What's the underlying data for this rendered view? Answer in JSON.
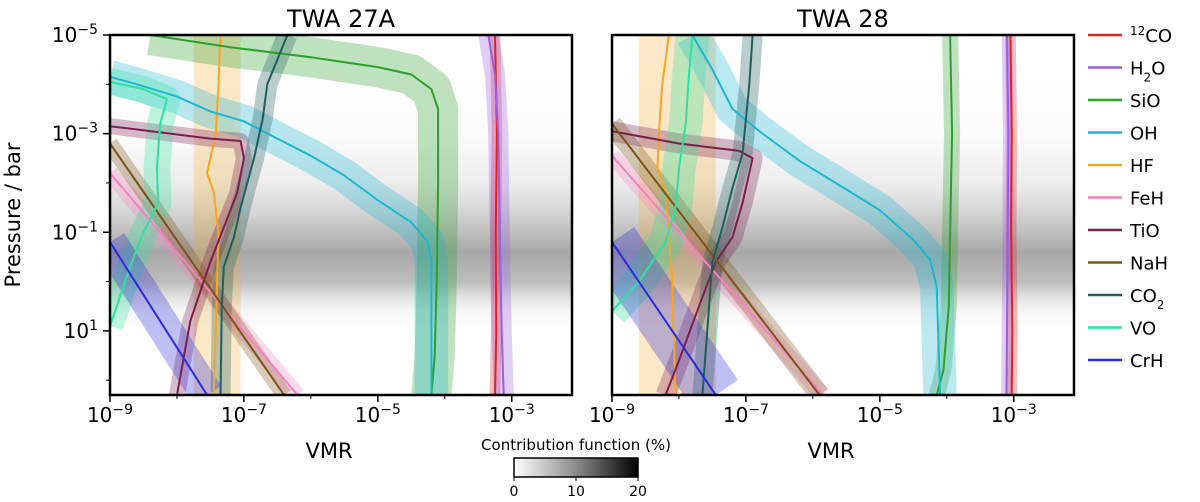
{
  "chart_data": {
    "type": "line",
    "figure_ylabel": "Pressure / bar",
    "xlabel": "VMR",
    "x_scale": "log",
    "y_scale": "log",
    "xlim": [
      -9,
      -2.1
    ],
    "ylim": [
      -5,
      2.3
    ],
    "x_ticks": [
      {
        "value": -9,
        "base": "10",
        "exp": "−9"
      },
      {
        "value": -7,
        "base": "10",
        "exp": "−7"
      },
      {
        "value": -5,
        "base": "10",
        "exp": "−5"
      },
      {
        "value": -3,
        "base": "10",
        "exp": "−3"
      }
    ],
    "y_ticks": [
      {
        "value": -5,
        "base": "10",
        "exp": "−5"
      },
      {
        "value": -3,
        "base": "10",
        "exp": "−3"
      },
      {
        "value": -1,
        "base": "10",
        "exp": "−1"
      },
      {
        "value": 1,
        "base": "10",
        "exp": "1"
      }
    ],
    "colorbar": {
      "label": "Contribution function (%)",
      "ticks": [
        "0",
        "10",
        "20"
      ],
      "range": [
        0,
        20
      ],
      "colormap": "Greys"
    },
    "legend": {
      "placement": "outside-right",
      "entries": [
        {
          "key": "12CO",
          "pre": "",
          "sup": "12",
          "main": "CO",
          "sub": "",
          "post": "",
          "color": "#d62728"
        },
        {
          "key": "H2O",
          "pre": "H",
          "sup": "",
          "main": "",
          "sub": "2",
          "post": "O",
          "color": "#9c5ce6"
        },
        {
          "key": "SiO",
          "pre": "SiO",
          "sup": "",
          "main": "",
          "sub": "",
          "post": "",
          "color": "#2ca02c"
        },
        {
          "key": "OH",
          "pre": "OH",
          "sup": "",
          "main": "",
          "sub": "",
          "post": "",
          "color": "#1fb6cf"
        },
        {
          "key": "HF",
          "pre": "HF",
          "sup": "",
          "main": "",
          "sub": "",
          "post": "",
          "color": "#f5a623"
        },
        {
          "key": "FeH",
          "pre": "FeH",
          "sup": "",
          "main": "",
          "sub": "",
          "post": "",
          "color": "#f781bf"
        },
        {
          "key": "TiO",
          "pre": "TiO",
          "sup": "",
          "main": "",
          "sub": "",
          "post": "",
          "color": "#7b1f4f"
        },
        {
          "key": "NaH",
          "pre": "NaH",
          "sup": "",
          "main": "",
          "sub": "",
          "post": "",
          "color": "#7a5418"
        },
        {
          "key": "CO2",
          "pre": "CO",
          "sup": "",
          "main": "",
          "sub": "2",
          "post": "",
          "color": "#1f5e5e"
        },
        {
          "key": "VO",
          "pre": "VO",
          "sup": "",
          "main": "",
          "sub": "",
          "post": "",
          "color": "#30e0a0"
        },
        {
          "key": "CrH",
          "pre": "CrH",
          "sup": "",
          "main": "",
          "sub": "",
          "post": "",
          "color": "#2b2bd8"
        }
      ]
    },
    "panels": [
      {
        "title": "TWA 27A",
        "contribution_peak_logP": -0.6,
        "contribution_peak_percent": 20,
        "series": [
          {
            "name": "HF",
            "band": [
              [
                -7.75,
                -7.05
              ],
              [
                -7.75,
                -7.05
              ]
            ],
            "band_y": [
              -5,
              2.3
            ],
            "line": [
              [
                -7.35,
                -5
              ],
              [
                -7.38,
                -4
              ],
              [
                -7.42,
                -3
              ],
              [
                -7.55,
                -2.2
              ],
              [
                -7.45,
                -1.8
              ],
              [
                -7.38,
                -1
              ],
              [
                -7.4,
                0
              ],
              [
                -7.42,
                1
              ],
              [
                -7.45,
                2.3
              ]
            ]
          },
          {
            "name": "12CO",
            "width": 0.08,
            "line": [
              [
                -3.25,
                -5
              ],
              [
                -3.22,
                -3
              ],
              [
                -3.24,
                -1
              ],
              [
                -3.23,
                1
              ],
              [
                -3.25,
                2.3
              ]
            ]
          },
          {
            "name": "H2O",
            "width": 0.15,
            "line": [
              [
                -3.35,
                -5
              ],
              [
                -3.25,
                -4.2
              ],
              [
                -3.2,
                -3
              ],
              [
                -3.18,
                -1
              ],
              [
                -3.15,
                1
              ],
              [
                -3.12,
                2.3
              ]
            ]
          },
          {
            "name": "SiO",
            "width": 0.3,
            "line": [
              [
                -8.4,
                -5
              ],
              [
                -7.2,
                -4.75
              ],
              [
                -6,
                -4.55
              ],
              [
                -5,
                -4.35
              ],
              [
                -4.5,
                -4.2
              ],
              [
                -4.2,
                -3.9
              ],
              [
                -4.1,
                -3.5
              ],
              [
                -4.1,
                -2
              ],
              [
                -4.12,
                0
              ],
              [
                -4.15,
                1.5
              ],
              [
                -4.2,
                2.3
              ]
            ]
          },
          {
            "name": "OH",
            "width": 0.25,
            "line": [
              [
                -9,
                -4.15
              ],
              [
                -8.6,
                -4
              ],
              [
                -8,
                -3.75
              ],
              [
                -7.5,
                -3.45
              ],
              [
                -7,
                -3.25
              ],
              [
                -6.5,
                -2.9
              ],
              [
                -6,
                -2.55
              ],
              [
                -5.5,
                -2.15
              ],
              [
                -5,
                -1.65
              ],
              [
                -4.5,
                -1.2
              ],
              [
                -4.25,
                -0.8
              ],
              [
                -4.2,
                -0.4
              ],
              [
                -4.2,
                2.3
              ]
            ]
          },
          {
            "name": "FeH",
            "width": 0.12,
            "line": [
              [
                -9,
                -2.2
              ],
              [
                -6.2,
                2.3
              ]
            ]
          },
          {
            "name": "TiO",
            "width": 0.12,
            "line": [
              [
                -9,
                -3.15
              ],
              [
                -8.1,
                -3
              ],
              [
                -7.5,
                -2.9
              ],
              [
                -7.05,
                -2.85
              ],
              [
                -7.0,
                -2.5
              ],
              [
                -7.1,
                -1.8
              ],
              [
                -7.3,
                -1.1
              ],
              [
                -7.5,
                -0.4
              ],
              [
                -7.8,
                0.8
              ],
              [
                -8.0,
                2.3
              ]
            ]
          },
          {
            "name": "NaH",
            "width": 0.12,
            "line": [
              [
                -9,
                -2.8
              ],
              [
                -6.4,
                2.3
              ]
            ]
          },
          {
            "name": "CO2",
            "width": 0.15,
            "line": [
              [
                -6.35,
                -5
              ],
              [
                -6.65,
                -4
              ],
              [
                -6.72,
                -3.3
              ],
              [
                -6.85,
                -2.5
              ],
              [
                -7.05,
                -1.5
              ],
              [
                -7.15,
                -0.9
              ],
              [
                -7.3,
                -0.3
              ],
              [
                -7.33,
                0.5
              ],
              [
                -7.35,
                2.3
              ]
            ]
          },
          {
            "name": "VO",
            "width": 0.2,
            "line": [
              [
                -9,
                -4.05
              ],
              [
                -8.5,
                -3.9
              ],
              [
                -8.15,
                -3.7
              ],
              [
                -8.25,
                -3.2
              ],
              [
                -8.3,
                -2.3
              ],
              [
                -8.28,
                -1.6
              ],
              [
                -8.5,
                -1
              ],
              [
                -8.7,
                -0.3
              ],
              [
                -9,
                0.9
              ]
            ]
          },
          {
            "name": "CrH",
            "width": 0.25,
            "line": [
              [
                -9,
                -0.8
              ],
              [
                -7.55,
                2.3
              ]
            ]
          }
        ]
      },
      {
        "title": "TWA 28",
        "contribution_peak_logP": -0.6,
        "contribution_peak_percent": 20,
        "series": [
          {
            "name": "HF",
            "band": [
              [
                -8.6,
                -7.45
              ],
              [
                -8.6,
                -7.45
              ]
            ],
            "band_y": [
              -5,
              2.3
            ],
            "line": [
              [
                -8.15,
                -5
              ],
              [
                -8.25,
                -4
              ],
              [
                -8.3,
                -3
              ],
              [
                -8.32,
                -2.3
              ],
              [
                -8.2,
                -1.8
              ],
              [
                -8.15,
                -1
              ],
              [
                -8.1,
                0
              ],
              [
                -8.08,
                1
              ],
              [
                -8.05,
                2.3
              ]
            ]
          },
          {
            "name": "12CO",
            "width": 0.08,
            "line": [
              [
                -3.05,
                -5
              ],
              [
                -3.03,
                -3
              ],
              [
                -3.04,
                -1
              ],
              [
                -3.02,
                1
              ],
              [
                -3.03,
                2.3
              ]
            ]
          },
          {
            "name": "H2O",
            "width": 0.08,
            "line": [
              [
                -3.1,
                -5
              ],
              [
                -3.08,
                -3
              ],
              [
                -3.09,
                -1
              ],
              [
                -3.1,
                1
              ],
              [
                -3.11,
                2.3
              ]
            ]
          },
          {
            "name": "SiO",
            "width": 0.12,
            "line": [
              [
                -3.95,
                -5
              ],
              [
                -3.92,
                -3
              ],
              [
                -3.95,
                -1
              ],
              [
                -3.97,
                0.5
              ],
              [
                -4.05,
                1.8
              ],
              [
                -4.15,
                2.3
              ]
            ]
          },
          {
            "name": "OH",
            "width": 0.25,
            "line": [
              [
                -7.8,
                -5
              ],
              [
                -7.5,
                -4.3
              ],
              [
                -7.2,
                -3.5
              ],
              [
                -6.8,
                -3.05
              ],
              [
                -6.2,
                -2.45
              ],
              [
                -5.6,
                -1.95
              ],
              [
                -5.0,
                -1.45
              ],
              [
                -4.5,
                -0.85
              ],
              [
                -4.25,
                -0.45
              ],
              [
                -4.15,
                0.1
              ],
              [
                -4.1,
                2.3
              ]
            ]
          },
          {
            "name": "FeH",
            "width": 0.12,
            "line": [
              [
                -9,
                -2.55
              ],
              [
                -5.85,
                2.3
              ]
            ]
          },
          {
            "name": "TiO",
            "width": 0.15,
            "line": [
              [
                -9,
                -3.05
              ],
              [
                -8.0,
                -2.8
              ],
              [
                -7.1,
                -2.65
              ],
              [
                -6.9,
                -2.5
              ],
              [
                -7.05,
                -1.6
              ],
              [
                -7.2,
                -0.9
              ],
              [
                -7.45,
                -0.4
              ],
              [
                -7.7,
                0.5
              ],
              [
                -8.0,
                1.6
              ],
              [
                -8.2,
                2.3
              ]
            ]
          },
          {
            "name": "NaH",
            "width": 0.15,
            "line": [
              [
                -9,
                -3.2
              ],
              [
                -5.9,
                2.3
              ]
            ]
          },
          {
            "name": "CO2",
            "width": 0.15,
            "line": [
              [
                -6.9,
                -5
              ],
              [
                -6.95,
                -4
              ],
              [
                -7.0,
                -3.3
              ],
              [
                -7.05,
                -2.6
              ],
              [
                -7.2,
                -1.9
              ],
              [
                -7.35,
                -1.1
              ],
              [
                -7.5,
                -0.4
              ],
              [
                -7.55,
                0.5
              ],
              [
                -7.65,
                2.3
              ]
            ]
          },
          {
            "name": "VO",
            "width": 0.25,
            "line": [
              [
                -7.8,
                -5
              ],
              [
                -7.85,
                -4.2
              ],
              [
                -7.9,
                -3.2
              ],
              [
                -8.0,
                -2.3
              ],
              [
                -8.05,
                -1.5
              ],
              [
                -8.2,
                -0.8
              ],
              [
                -8.6,
                0
              ],
              [
                -9,
                0.6
              ]
            ]
          },
          {
            "name": "CrH",
            "width": 0.4,
            "line": [
              [
                -9,
                -0.8
              ],
              [
                -7.45,
                2.3
              ]
            ]
          }
        ]
      }
    ]
  }
}
